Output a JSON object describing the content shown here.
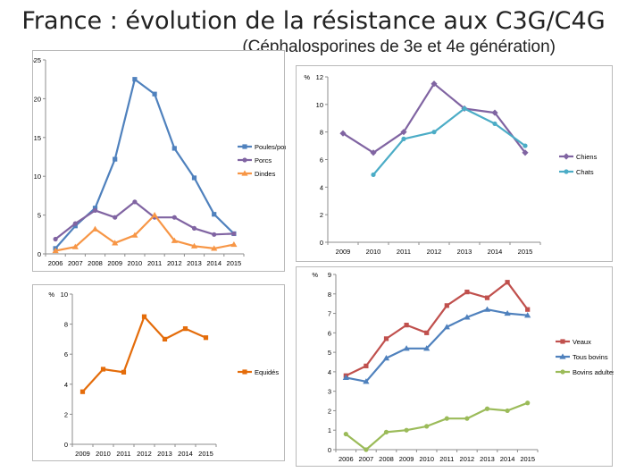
{
  "page": {
    "title": "France : évolution de la résistance aux C3G/C4G",
    "subtitle": "(Céphalosporines de 3e et 4e génération)"
  },
  "chart_data": [
    {
      "id": "volailles",
      "type": "line",
      "ylabel": "%",
      "ylim": [
        0,
        25
      ],
      "yticks": [
        0,
        5,
        10,
        15,
        20,
        25
      ],
      "ytick_labels": [
        "0",
        "5",
        "10",
        "15",
        "20",
        "%25"
      ],
      "categories": [
        "2006",
        "2007",
        "2008",
        "2009",
        "2010",
        "2011",
        "2012",
        "2013",
        "2014",
        "2015"
      ],
      "legend": "right",
      "grid": false,
      "series": [
        {
          "name": "Poules/poulets",
          "color": "#4f81bd",
          "marker": "square",
          "values": [
            0.7,
            3.6,
            5.9,
            12.2,
            22.5,
            20.6,
            13.6,
            9.8,
            5.1,
            2.6
          ]
        },
        {
          "name": "Porcs",
          "color": "#8064a2",
          "marker": "circle",
          "values": [
            1.9,
            3.9,
            5.6,
            4.7,
            6.7,
            4.7,
            4.7,
            3.3,
            2.5,
            2.6
          ]
        },
        {
          "name": "Dindes",
          "color": "#f79646",
          "marker": "triangle",
          "values": [
            0.4,
            0.9,
            3.2,
            1.4,
            2.4,
            5.0,
            1.7,
            1.0,
            0.7,
            1.2
          ]
        }
      ]
    },
    {
      "id": "carnivores",
      "type": "line",
      "ylabel": "%",
      "ylim": [
        0,
        12
      ],
      "yticks": [
        0,
        2,
        4,
        6,
        8,
        10,
        12
      ],
      "ytick_labels": [
        "0",
        "2",
        "4",
        "6",
        "8",
        "10",
        "12"
      ],
      "categories": [
        "2009",
        "2010",
        "2011",
        "2012",
        "2013",
        "2014",
        "2015"
      ],
      "legend": "right",
      "grid": false,
      "series": [
        {
          "name": "Chiens",
          "color": "#8064a2",
          "marker": "diamond",
          "values": [
            7.9,
            6.5,
            8.0,
            11.5,
            9.7,
            9.4,
            6.5
          ]
        },
        {
          "name": "Chats",
          "color": "#4bacc6",
          "marker": "circle",
          "values": [
            null,
            4.9,
            7.5,
            8.0,
            9.7,
            8.6,
            7.0
          ]
        }
      ]
    },
    {
      "id": "equides",
      "type": "line",
      "ylabel": "%",
      "ylim": [
        0,
        10
      ],
      "yticks": [
        0,
        2,
        4,
        6,
        8,
        10
      ],
      "ytick_labels": [
        "0",
        "2",
        "4",
        "6",
        "8",
        "10"
      ],
      "categories": [
        "2009",
        "2010",
        "2011",
        "2012",
        "2013",
        "2014",
        "2015"
      ],
      "legend": "right",
      "grid": false,
      "series": [
        {
          "name": "Equidés",
          "color": "#e46c0a",
          "marker": "square",
          "values": [
            3.5,
            5.0,
            4.8,
            8.5,
            7.0,
            7.7,
            7.1
          ]
        }
      ]
    },
    {
      "id": "bovins",
      "type": "line",
      "ylabel": "%",
      "ylim": [
        0,
        9
      ],
      "yticks": [
        0,
        1,
        2,
        3,
        4,
        5,
        6,
        7,
        8,
        9
      ],
      "ytick_labels": [
        "0",
        "1",
        "2",
        "3",
        "4",
        "5",
        "6",
        "7",
        "8",
        "9"
      ],
      "categories": [
        "2006",
        "2007",
        "2008",
        "2009",
        "2010",
        "2011",
        "2012",
        "2013",
        "2014",
        "2015"
      ],
      "legend": "right",
      "grid": false,
      "series": [
        {
          "name": "Veaux",
          "color": "#c0504d",
          "marker": "square",
          "values": [
            3.8,
            4.3,
            5.7,
            6.4,
            6.0,
            7.4,
            8.1,
            7.8,
            8.6,
            7.2
          ]
        },
        {
          "name": "Tous bovins",
          "color": "#4f81bd",
          "marker": "triangle",
          "values": [
            3.7,
            3.5,
            4.7,
            5.2,
            5.2,
            6.3,
            6.8,
            7.2,
            7.0,
            6.9
          ]
        },
        {
          "name": "Bovins adultes",
          "color": "#9bbb59",
          "marker": "circle",
          "values": [
            0.8,
            0.0,
            0.9,
            1.0,
            1.2,
            1.6,
            1.6,
            2.1,
            2.0,
            2.4
          ]
        }
      ]
    }
  ]
}
